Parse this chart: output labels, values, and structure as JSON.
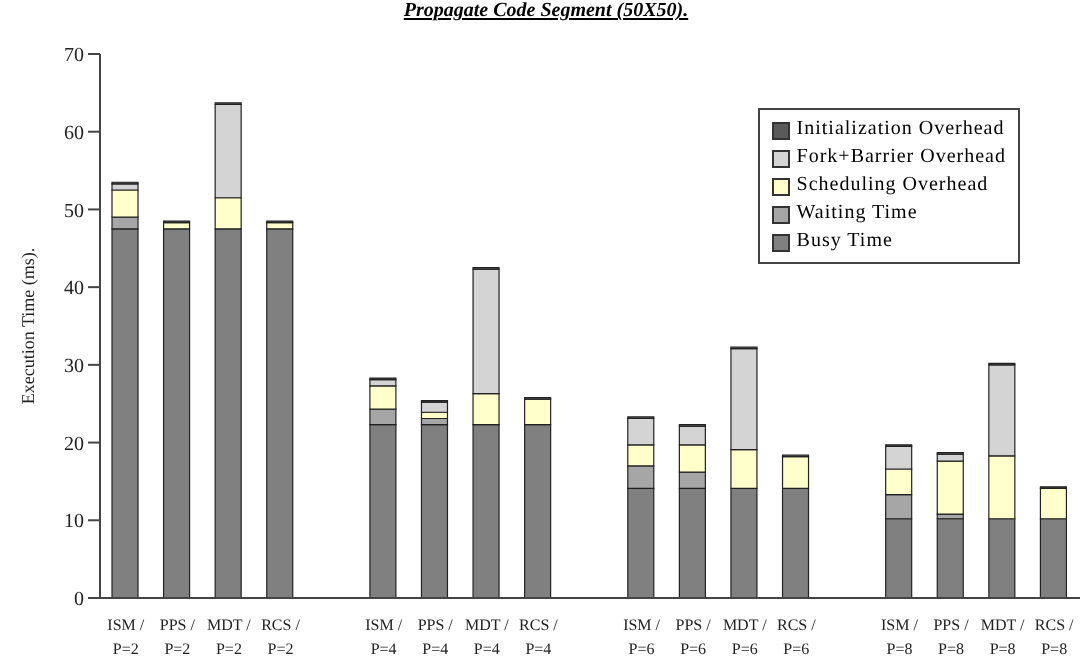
{
  "chart_data": {
    "type": "bar",
    "title": "Propagate Code Segment (50X50).",
    "ylabel": "Execution Time (ms).",
    "categories": [
      "ISM / P=2",
      "PPS / P=2",
      "MDT / P=2",
      "RCS / P=2",
      null,
      "ISM / P=4",
      "PPS / P=4",
      "MDT / P=4",
      "RCS / P=4",
      null,
      "ISM / P=6",
      "PPS / P=6",
      "MDT / P=6",
      "RCS / P=6",
      null,
      "ISM / P=8",
      "PPS / P=8",
      "MDT / P=8",
      "RCS / P=8"
    ],
    "stacked": true,
    "ylim": [
      0,
      70
    ],
    "yticks": [
      0,
      10,
      20,
      30,
      40,
      50,
      60,
      70
    ],
    "grid": false,
    "legend": "top right",
    "series": [
      {
        "name": "Busy Time",
        "color": "#808080",
        "values": [
          47.5,
          47.5,
          47.5,
          47.5,
          null,
          22.3,
          22.3,
          22.3,
          22.3,
          null,
          14.1,
          14.1,
          14.1,
          14.1,
          null,
          10.2,
          10.2,
          10.2,
          10.2
        ]
      },
      {
        "name": "Waiting Time",
        "color": "#a6a6a6",
        "values": [
          1.5,
          0,
          0,
          0,
          null,
          2,
          0.8,
          0,
          0,
          null,
          2.9,
          2.1,
          0,
          0,
          null,
          3.1,
          0.6,
          0,
          0
        ]
      },
      {
        "name": "Scheduling Overhead",
        "color": "#ffffcc",
        "values": [
          3.5,
          0.8,
          4,
          0.8,
          null,
          3,
          0.8,
          4,
          3.3,
          null,
          2.7,
          3.5,
          5,
          4.1,
          null,
          3.3,
          6.8,
          8.1,
          3.9
        ]
      },
      {
        "name": "Fork+Barrier Overhead",
        "color": "#d4d4d4",
        "values": [
          0.8,
          0,
          12,
          0,
          null,
          0.8,
          1.3,
          16,
          0,
          null,
          3.4,
          2.4,
          13,
          0,
          null,
          2.9,
          0.9,
          11.7,
          0
        ]
      },
      {
        "name": "Initialization Overhead",
        "color": "#5a5a5a",
        "values": [
          0.2,
          0.2,
          0.2,
          0.2,
          null,
          0.2,
          0.2,
          0.2,
          0.2,
          null,
          0.2,
          0.2,
          0.2,
          0.2,
          null,
          0.2,
          0.2,
          0.2,
          0.2
        ]
      }
    ]
  }
}
